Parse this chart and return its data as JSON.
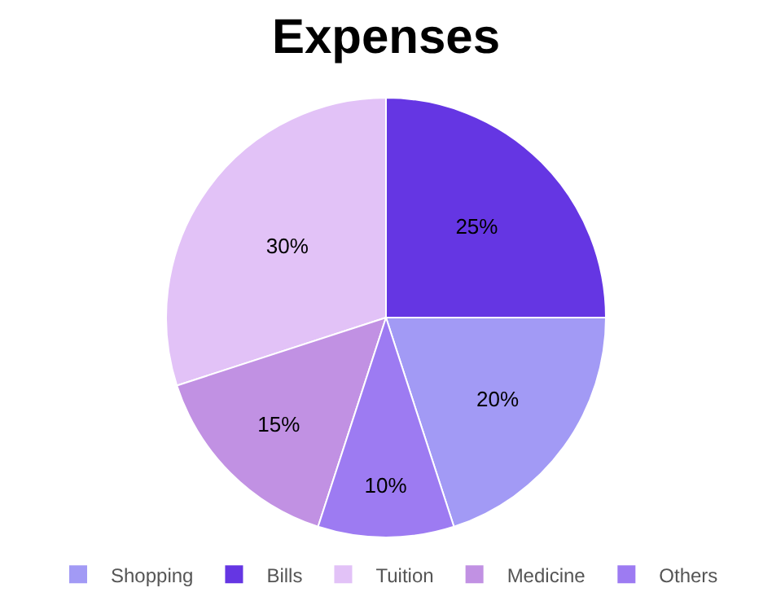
{
  "chart_data": {
    "type": "pie",
    "title": "Expenses",
    "categories": [
      "Shopping",
      "Bills",
      "Tuition",
      "Medicine",
      "Others"
    ],
    "values": [
      20,
      25,
      30,
      15,
      10
    ],
    "colors": [
      "#a29af5",
      "#6536e3",
      "#e2c2f7",
      "#c191e3",
      "#9d7bf2"
    ],
    "value_labels": [
      "20%",
      "25%",
      "30%",
      "15%",
      "10%"
    ],
    "legend": "bottom"
  }
}
